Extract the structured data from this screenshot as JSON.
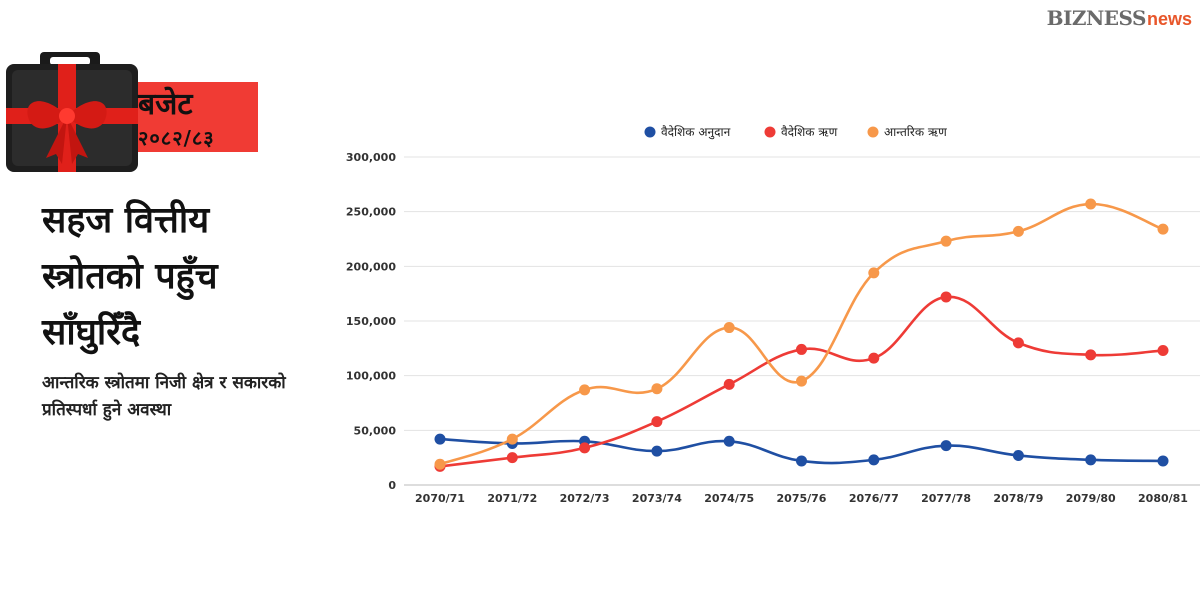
{
  "brand": {
    "logo_b": "BIZNESS",
    "logo_news": "news"
  },
  "badge": {
    "title": "बजेट",
    "year": "२०८२/८३"
  },
  "headline": "सहज वित्तीय स्त्रोतको पहुँच साँघुरिँदै",
  "subheadline": "आन्तरिक स्त्रोतमा निजी क्षेत्र र सकारको प्रतिस्पर्धा हुने अवस्था",
  "colors": {
    "accent": "#f03b34",
    "series_blue": "#1f4fa3",
    "series_red": "#ee3b36",
    "series_orange": "#f7984a"
  },
  "chart_data": {
    "type": "line",
    "categories": [
      "2070/71",
      "2071/72",
      "2072/73",
      "2073/74",
      "2074/75",
      "2075/76",
      "2076/77",
      "2077/78",
      "2078/79",
      "2079/80",
      "2080/81"
    ],
    "y_ticks": [
      "0",
      "50,000",
      "100,000",
      "150,000",
      "200,000",
      "250,000",
      "300,000"
    ],
    "ylim": [
      0,
      300000
    ],
    "grid": true,
    "legend_position": "top-center",
    "series": [
      {
        "name": "वैदेशिक अनुदान",
        "color": "#1f4fa3",
        "values": [
          42000,
          38000,
          40000,
          31000,
          40000,
          22000,
          23000,
          36000,
          27000,
          23000,
          22000
        ]
      },
      {
        "name": "वैदेशिक ऋण",
        "color": "#ee3b36",
        "values": [
          17000,
          25000,
          34000,
          58000,
          92000,
          124000,
          116000,
          172000,
          130000,
          119000,
          123000
        ]
      },
      {
        "name": "आन्तरिक ऋण",
        "color": "#f7984a",
        "values": [
          19000,
          42000,
          87000,
          88000,
          144000,
          95000,
          194000,
          223000,
          232000,
          257000,
          234000
        ]
      }
    ]
  }
}
